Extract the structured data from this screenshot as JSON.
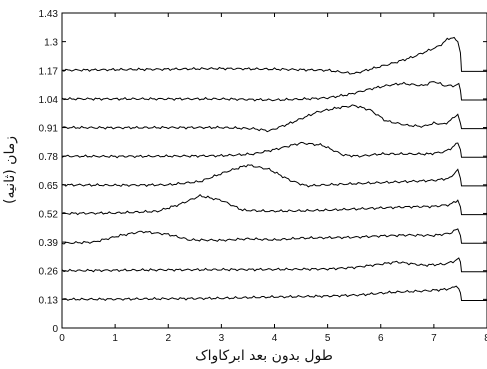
{
  "chart_data": {
    "type": "line",
    "xlabel": "طول بدون بعد ابرکاواک",
    "ylabel": "زمان (ثانیه)",
    "xlim": [
      0,
      8
    ],
    "ylim": [
      0,
      1.43
    ],
    "x_ticks": [
      "0",
      "1",
      "2",
      "3",
      "4",
      "5",
      "6",
      "7",
      "8"
    ],
    "y_ticks": [
      {
        "value": 0,
        "label": "0"
      },
      {
        "value": 0.13,
        "label": "0.13"
      },
      {
        "value": 0.26,
        "label": "0.26"
      },
      {
        "value": 0.39,
        "label": "0.39"
      },
      {
        "value": 0.52,
        "label": "0.52"
      },
      {
        "value": 0.65,
        "label": "0.65"
      },
      {
        "value": 0.78,
        "label": "0.78"
      },
      {
        "value": 0.91,
        "label": "0.91"
      },
      {
        "value": 1.04,
        "label": "1.04"
      },
      {
        "value": 1.17,
        "label": "1.17"
      },
      {
        "value": 1.3,
        "label": "1.3"
      },
      {
        "value": 1.43,
        "label": "1.43"
      }
    ],
    "grid": false,
    "legend": "none",
    "line_color": "#000000",
    "series": [
      {
        "x": [
          0,
          1,
          2,
          3,
          3.8,
          4.3,
          5.0,
          5.6,
          6.2,
          6.8,
          7.2,
          7.35,
          7.42,
          7.47,
          7.5,
          7.52,
          8.0
        ],
        "y": [
          0.13,
          0.131,
          0.133,
          0.135,
          0.14,
          0.142,
          0.145,
          0.15,
          0.162,
          0.168,
          0.175,
          0.182,
          0.19,
          0.178,
          0.16,
          0.125,
          0.125
        ]
      },
      {
        "x": [
          0,
          1,
          2,
          3,
          4,
          5,
          5.5,
          6.0,
          6.3,
          6.8,
          7.2,
          7.4,
          7.47,
          7.5,
          7.52,
          8.0
        ],
        "y": [
          0.26,
          0.262,
          0.264,
          0.265,
          0.266,
          0.268,
          0.275,
          0.29,
          0.3,
          0.285,
          0.29,
          0.305,
          0.318,
          0.3,
          0.255,
          0.255
        ]
      },
      {
        "x": [
          0,
          0.6,
          1.1,
          1.5,
          2.0,
          2.4,
          3.0,
          3.5,
          4.0,
          4.5,
          5.0,
          5.5,
          6.0,
          6.5,
          7.0,
          7.3,
          7.45,
          7.5,
          7.52,
          8.0
        ],
        "y": [
          0.385,
          0.39,
          0.42,
          0.438,
          0.425,
          0.4,
          0.398,
          0.405,
          0.4,
          0.408,
          0.41,
          0.412,
          0.418,
          0.422,
          0.42,
          0.43,
          0.45,
          0.42,
          0.385,
          0.385
        ]
      },
      {
        "x": [
          0,
          1,
          1.8,
          2.2,
          2.6,
          3.0,
          3.4,
          3.9,
          4.5,
          5.0,
          5.5,
          6.0,
          6.5,
          7.0,
          7.3,
          7.45,
          7.5,
          7.52,
          8.0
        ],
        "y": [
          0.52,
          0.522,
          0.53,
          0.56,
          0.6,
          0.58,
          0.535,
          0.53,
          0.532,
          0.535,
          0.54,
          0.545,
          0.55,
          0.552,
          0.56,
          0.58,
          0.55,
          0.515,
          0.515
        ]
      },
      {
        "x": [
          0,
          1,
          2,
          2.6,
          3.1,
          3.5,
          3.9,
          4.3,
          4.6,
          5.0,
          5.5,
          6.0,
          6.5,
          7.0,
          7.3,
          7.45,
          7.5,
          7.52,
          8.0
        ],
        "y": [
          0.65,
          0.648,
          0.65,
          0.665,
          0.71,
          0.74,
          0.72,
          0.67,
          0.645,
          0.65,
          0.655,
          0.66,
          0.665,
          0.67,
          0.68,
          0.72,
          0.68,
          0.645,
          0.645
        ]
      },
      {
        "x": [
          0,
          1,
          2,
          3,
          3.6,
          4.0,
          4.5,
          4.9,
          5.3,
          5.6,
          6.0,
          6.5,
          6.9,
          7.2,
          7.35,
          7.45,
          7.5,
          7.52,
          8.0
        ],
        "y": [
          0.78,
          0.779,
          0.78,
          0.782,
          0.79,
          0.81,
          0.84,
          0.83,
          0.785,
          0.78,
          0.79,
          0.79,
          0.79,
          0.8,
          0.82,
          0.84,
          0.81,
          0.775,
          0.775
        ]
      },
      {
        "x": [
          0,
          1,
          2,
          3,
          3.6,
          3.9,
          4.3,
          4.8,
          5.2,
          5.5,
          5.8,
          6.1,
          6.5,
          6.8,
          7.0,
          7.2,
          7.35,
          7.45,
          7.5,
          7.52,
          8.0
        ],
        "y": [
          0.91,
          0.909,
          0.91,
          0.91,
          0.905,
          0.895,
          0.93,
          0.98,
          1.0,
          1.01,
          0.99,
          0.94,
          0.92,
          0.915,
          0.93,
          0.925,
          0.95,
          0.97,
          0.93,
          0.905,
          0.905
        ]
      },
      {
        "x": [
          0,
          1,
          2,
          3,
          4,
          4.6,
          5.0,
          5.4,
          5.8,
          6.1,
          6.4,
          6.8,
          7.0,
          7.2,
          7.4,
          7.47,
          7.5,
          7.52,
          8.0
        ],
        "y": [
          1.04,
          1.04,
          1.04,
          1.04,
          1.035,
          1.04,
          1.045,
          1.06,
          1.085,
          1.1,
          1.11,
          1.1,
          1.12,
          1.1,
          1.1,
          1.11,
          1.08,
          1.035,
          1.035
        ]
      },
      {
        "x": [
          0,
          1,
          2,
          3,
          4,
          5.0,
          5.3,
          5.5,
          5.8,
          6.2,
          6.6,
          6.9,
          7.1,
          7.25,
          7.35,
          7.45,
          7.5,
          7.52,
          8.0
        ],
        "y": [
          1.17,
          1.173,
          1.175,
          1.178,
          1.175,
          1.17,
          1.16,
          1.155,
          1.175,
          1.2,
          1.23,
          1.26,
          1.28,
          1.31,
          1.32,
          1.3,
          1.25,
          1.165,
          1.165
        ]
      }
    ]
  }
}
